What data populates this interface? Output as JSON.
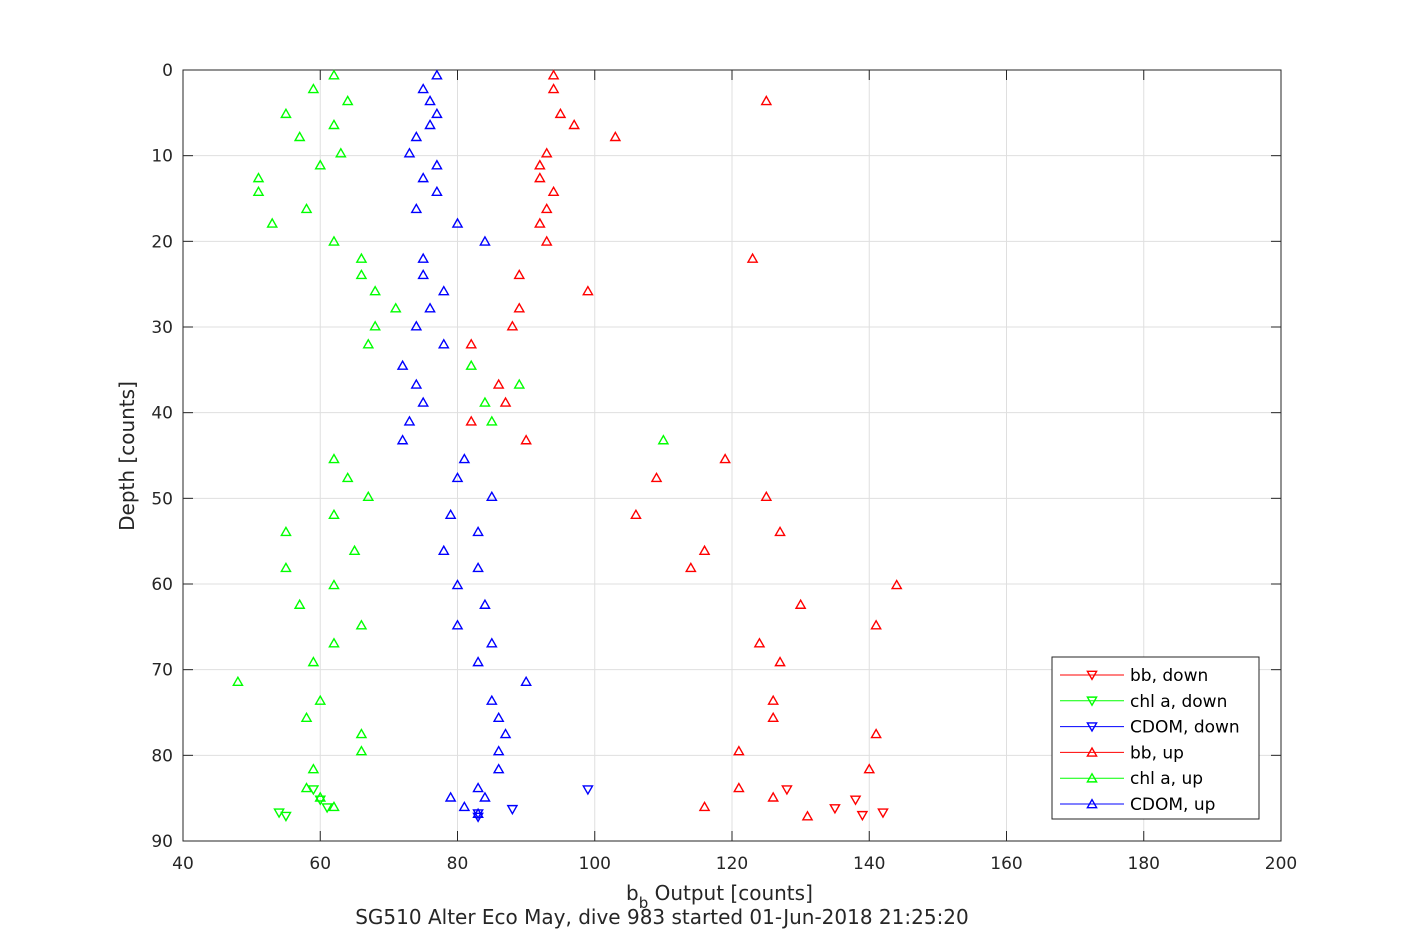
{
  "chart_data": {
    "type": "scatter",
    "title": "",
    "xlabel_main": "b",
    "xlabel_sub": "b",
    "xlabel_rest": " Output [counts]",
    "ylabel": "Depth [counts]",
    "caption": "SG510 Alter Eco May, dive 983 started 01-Jun-2018 21:25:20",
    "xlim": [
      40,
      200
    ],
    "ylim": [
      0,
      90
    ],
    "y_reversed": true,
    "xticks": [
      40,
      60,
      80,
      100,
      120,
      140,
      160,
      180,
      200
    ],
    "yticks": [
      0,
      10,
      20,
      30,
      40,
      50,
      60,
      70,
      80,
      90
    ],
    "grid": true,
    "legend_position": "bottom-right",
    "series": [
      {
        "name": "bb, down",
        "color": "#ff0000",
        "marker": "triangle-down",
        "points": [
          [
            128,
            84
          ],
          [
            135,
            86.2
          ],
          [
            138,
            85.2
          ],
          [
            139,
            87
          ],
          [
            142,
            86.7
          ]
        ]
      },
      {
        "name": "chl a, down",
        "color": "#00ff00",
        "marker": "triangle-down",
        "points": [
          [
            54,
            86.7
          ],
          [
            55,
            87.1
          ],
          [
            59,
            84
          ],
          [
            60,
            85.2
          ],
          [
            61,
            86.1
          ]
        ]
      },
      {
        "name": "CDOM, down",
        "color": "#0000ff",
        "marker": "triangle-down",
        "points": [
          [
            83,
            86.8
          ],
          [
            83,
            87.2
          ],
          [
            88,
            86.3
          ],
          [
            99,
            84
          ]
        ]
      },
      {
        "name": "bb, up",
        "color": "#ff0000",
        "marker": "triangle-up",
        "points": [
          [
            94,
            0.6
          ],
          [
            94,
            2.2
          ],
          [
            125,
            3.6
          ],
          [
            95,
            5.1
          ],
          [
            97,
            6.4
          ],
          [
            103,
            7.8
          ],
          [
            93,
            9.7
          ],
          [
            92,
            11.1
          ],
          [
            92,
            12.6
          ],
          [
            94,
            14.2
          ],
          [
            93,
            16.2
          ],
          [
            92,
            17.9
          ],
          [
            93,
            20
          ],
          [
            123,
            22
          ],
          [
            89,
            23.9
          ],
          [
            99,
            25.8
          ],
          [
            89,
            27.8
          ],
          [
            88,
            29.9
          ],
          [
            82,
            32
          ],
          [
            86,
            36.7
          ],
          [
            87,
            38.8
          ],
          [
            82,
            41
          ],
          [
            90,
            43.2
          ],
          [
            119,
            45.4
          ],
          [
            109,
            47.6
          ],
          [
            125,
            49.8
          ],
          [
            106,
            51.9
          ],
          [
            127,
            53.9
          ],
          [
            116,
            56.1
          ],
          [
            114,
            58.1
          ],
          [
            144,
            60.1
          ],
          [
            130,
            62.4
          ],
          [
            141,
            64.8
          ],
          [
            124,
            66.9
          ],
          [
            127,
            69.1
          ],
          [
            126,
            73.6
          ],
          [
            126,
            75.6
          ],
          [
            141,
            77.5
          ],
          [
            121,
            79.5
          ],
          [
            140,
            81.6
          ],
          [
            121,
            83.8
          ],
          [
            126,
            84.9
          ],
          [
            116,
            86
          ],
          [
            131,
            87.1
          ]
        ]
      },
      {
        "name": "chl a, up",
        "color": "#00ff00",
        "marker": "triangle-up",
        "points": [
          [
            62,
            0.6
          ],
          [
            59,
            2.2
          ],
          [
            64,
            3.6
          ],
          [
            55,
            5.1
          ],
          [
            62,
            6.4
          ],
          [
            57,
            7.8
          ],
          [
            63,
            9.7
          ],
          [
            60,
            11.1
          ],
          [
            51,
            12.6
          ],
          [
            51,
            14.2
          ],
          [
            58,
            16.2
          ],
          [
            53,
            17.9
          ],
          [
            62,
            20
          ],
          [
            66,
            22
          ],
          [
            66,
            23.9
          ],
          [
            68,
            25.8
          ],
          [
            71,
            27.8
          ],
          [
            68,
            29.9
          ],
          [
            67,
            32
          ],
          [
            82,
            34.5
          ],
          [
            89,
            36.7
          ],
          [
            84,
            38.8
          ],
          [
            85,
            41
          ],
          [
            110,
            43.2
          ],
          [
            62,
            45.4
          ],
          [
            64,
            47.6
          ],
          [
            67,
            49.8
          ],
          [
            62,
            51.9
          ],
          [
            55,
            53.9
          ],
          [
            65,
            56.1
          ],
          [
            55,
            58.1
          ],
          [
            62,
            60.1
          ],
          [
            57,
            62.4
          ],
          [
            66,
            64.8
          ],
          [
            62,
            66.9
          ],
          [
            59,
            69.1
          ],
          [
            48,
            71.4
          ],
          [
            60,
            73.6
          ],
          [
            58,
            75.6
          ],
          [
            66,
            77.5
          ],
          [
            66,
            79.5
          ],
          [
            59,
            81.6
          ],
          [
            58,
            83.8
          ],
          [
            60,
            84.9
          ],
          [
            62,
            86
          ]
        ]
      },
      {
        "name": "CDOM, up",
        "color": "#0000ff",
        "marker": "triangle-up",
        "points": [
          [
            77,
            0.6
          ],
          [
            75,
            2.2
          ],
          [
            76,
            3.6
          ],
          [
            77,
            5.1
          ],
          [
            76,
            6.4
          ],
          [
            74,
            7.8
          ],
          [
            73,
            9.7
          ],
          [
            77,
            11.1
          ],
          [
            75,
            12.6
          ],
          [
            77,
            14.2
          ],
          [
            74,
            16.2
          ],
          [
            80,
            17.9
          ],
          [
            84,
            20
          ],
          [
            75,
            22
          ],
          [
            75,
            23.9
          ],
          [
            78,
            25.8
          ],
          [
            76,
            27.8
          ],
          [
            74,
            29.9
          ],
          [
            78,
            32
          ],
          [
            72,
            34.5
          ],
          [
            74,
            36.7
          ],
          [
            75,
            38.8
          ],
          [
            73,
            41
          ],
          [
            72,
            43.2
          ],
          [
            81,
            45.4
          ],
          [
            80,
            47.6
          ],
          [
            85,
            49.8
          ],
          [
            79,
            51.9
          ],
          [
            83,
            53.9
          ],
          [
            78,
            56.1
          ],
          [
            83,
            58.1
          ],
          [
            80,
            60.1
          ],
          [
            84,
            62.4
          ],
          [
            80,
            64.8
          ],
          [
            85,
            66.9
          ],
          [
            83,
            69.1
          ],
          [
            90,
            71.4
          ],
          [
            85,
            73.6
          ],
          [
            86,
            75.6
          ],
          [
            87,
            77.5
          ],
          [
            86,
            79.5
          ],
          [
            86,
            81.6
          ],
          [
            83,
            83.8
          ],
          [
            79,
            84.9
          ],
          [
            84,
            84.9
          ],
          [
            81,
            86
          ],
          [
            83,
            86.8
          ]
        ]
      }
    ]
  }
}
